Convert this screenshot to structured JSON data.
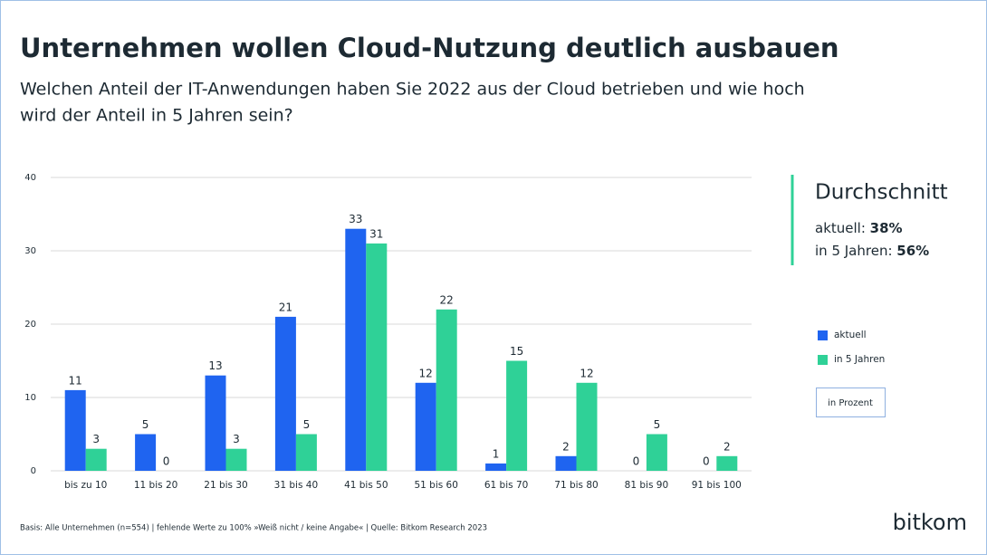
{
  "chart_data": {
    "type": "bar",
    "title": "Unternehmen wollen Cloud-Nutzung deutlich ausbauen",
    "subtitle": [
      "Welchen Anteil der IT-Anwendungen haben Sie 2022 aus der Cloud betrieben und wie hoch",
      "wird der Anteil in 5 Jahren sein?"
    ],
    "categories": [
      "bis zu 10",
      "11 bis 20",
      "21 bis 30",
      "31 bis 40",
      "41 bis 50",
      "51 bis 60",
      "61 bis 70",
      "71 bis 80",
      "81 bis 90",
      "91 bis 100"
    ],
    "series": [
      {
        "name": "aktuell",
        "color": "#1f64f0",
        "values": [
          11,
          5,
          13,
          21,
          33,
          12,
          1,
          2,
          0,
          0
        ]
      },
      {
        "name": "in 5 Jahren",
        "color": "#2fd197",
        "values": [
          3,
          0,
          3,
          5,
          31,
          22,
          15,
          12,
          5,
          2
        ]
      }
    ],
    "ylim": [
      0,
      40
    ],
    "yticks": [
      0,
      10,
      20,
      30,
      40
    ],
    "grid": true,
    "unit_note": "in Prozent",
    "average": {
      "title": "Durchschnitt",
      "items": [
        {
          "label": "aktuell:",
          "value": "38%"
        },
        {
          "label": "in 5 Jahren:",
          "value": "56%"
        }
      ]
    },
    "source": "Basis: Alle Unternehmen (n=554) | fehlende Werte zu 100% »Weiß nicht / keine Angabe« | Quelle: Bitkom Research 2023",
    "logo": "bitkom"
  }
}
